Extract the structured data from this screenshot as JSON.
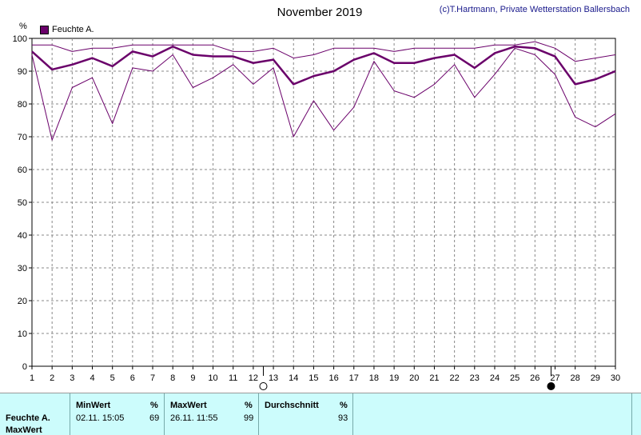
{
  "title": "November 2019",
  "credit": "(c)T.Hartmann, Private Wetterstation Ballersbach",
  "legend": {
    "label": "Feuchte A.",
    "color": "#6a006a"
  },
  "y_unit": "%",
  "moon_phases": [
    {
      "day": 12.5,
      "phase": "full-moon"
    },
    {
      "day": 26.8,
      "phase": "new-moon"
    }
  ],
  "chart_data": {
    "type": "line",
    "title": "November 2019",
    "xlabel": "",
    "ylabel": "%",
    "x": [
      1,
      2,
      3,
      4,
      5,
      6,
      7,
      8,
      9,
      10,
      11,
      12,
      13,
      14,
      15,
      16,
      17,
      18,
      19,
      20,
      21,
      22,
      23,
      24,
      25,
      26,
      27,
      28,
      29,
      30
    ],
    "xlim": [
      1,
      30
    ],
    "ylim": [
      0,
      100
    ],
    "yticks": [
      0,
      10,
      20,
      30,
      40,
      50,
      60,
      70,
      80,
      90,
      100
    ],
    "grid": true,
    "legend_position": "top-left",
    "series": [
      {
        "name": "Feuchte A.",
        "role": "max",
        "values": [
          98,
          98,
          96,
          97,
          97,
          98,
          98,
          98,
          98,
          98,
          96,
          96,
          97,
          94,
          95,
          97,
          97,
          97,
          96,
          97,
          97,
          97,
          97,
          98,
          98,
          99,
          97,
          93,
          94,
          95
        ]
      },
      {
        "name": "Feuchte A.",
        "role": "avg",
        "values": [
          96,
          90.5,
          92,
          94,
          91.5,
          96,
          94.5,
          97.5,
          95,
          94.5,
          94.5,
          92.5,
          93.5,
          86,
          88.5,
          90,
          93.5,
          95.5,
          92.5,
          92.5,
          94,
          95,
          91,
          95.5,
          97.5,
          97,
          94.5,
          86,
          87.5,
          90
        ]
      },
      {
        "name": "Feuchte A.",
        "role": "min",
        "values": [
          95,
          69,
          85,
          88,
          74,
          91,
          90,
          95,
          85,
          88,
          92,
          86,
          91,
          70,
          81,
          72,
          79,
          93,
          84,
          82,
          86,
          92,
          82,
          89,
          97,
          95,
          89,
          76,
          73,
          77
        ]
      }
    ]
  },
  "stats": {
    "row_label": "Feuchte A.",
    "row_label2": "MaxWert",
    "min": {
      "header": "MinWert",
      "unit": "%",
      "datetime": "02.11.  15:05",
      "value": "69"
    },
    "max": {
      "header": "MaxWert",
      "unit": "%",
      "datetime": "26.11.  11:55",
      "value": "99"
    },
    "avg": {
      "header": "Durchschnitt",
      "unit": "%",
      "value": "93"
    }
  }
}
